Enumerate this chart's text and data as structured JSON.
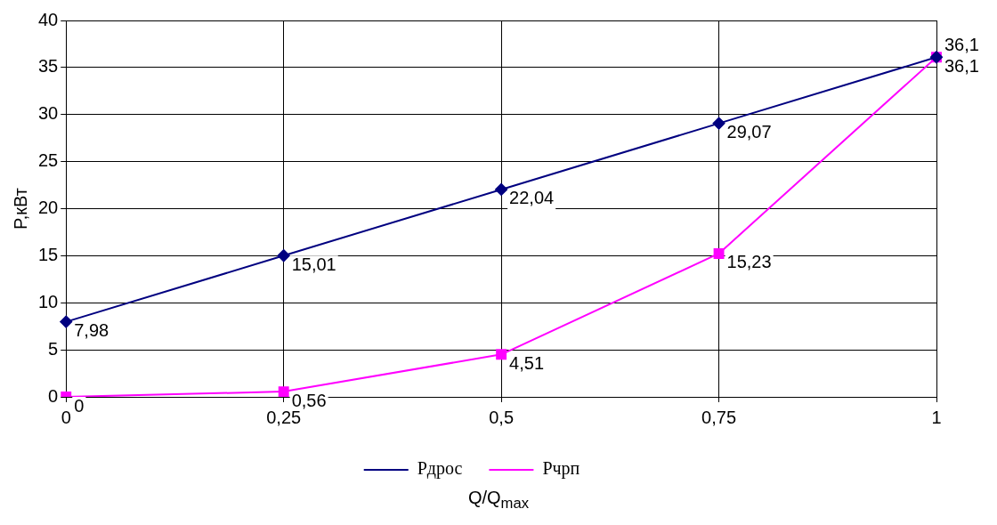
{
  "chart_data": {
    "type": "line",
    "ylabel": "P,кВт",
    "xlabel": "Q/Q$_{max}$",
    "categories": [
      "0",
      "0,25",
      "0,5",
      "0,75",
      "1"
    ],
    "ylim": [
      0,
      40
    ],
    "yticks": [
      0,
      5,
      10,
      15,
      20,
      25,
      30,
      35,
      40
    ],
    "grid": true,
    "legend": "bottom",
    "series": [
      {
        "name": "Pдрос",
        "color": "#000080",
        "marker": "diamond",
        "values": [
          7.98,
          15.01,
          22.04,
          29.07,
          36.1
        ],
        "value_labels": [
          "7,98",
          "15,01",
          "22,04",
          "29,07",
          "36,1"
        ]
      },
      {
        "name": "Pчрп",
        "color": "#ff00ff",
        "marker": "square",
        "values": [
          0,
          0.56,
          4.51,
          15.23,
          36.1
        ],
        "value_labels": [
          "0",
          "0,56",
          "4,51",
          "15,23",
          "36,1"
        ]
      }
    ]
  }
}
